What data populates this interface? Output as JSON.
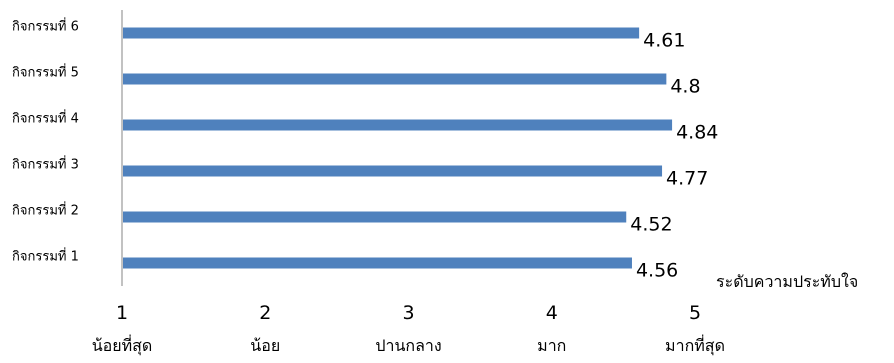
{
  "chart_data": {
    "type": "bar",
    "orientation": "horizontal",
    "categories": [
      "กิจกรรมที่ 1",
      "กิจกรรมที่ 2",
      "กิจกรรมที่ 3",
      "กิจกรรมที่ 4",
      "กิจกรรมที่ 5",
      "กิจกรรมที่ 6"
    ],
    "values": [
      4.56,
      4.52,
      4.77,
      4.84,
      4.8,
      4.61
    ],
    "value_labels": [
      "4.56",
      "4.52",
      "4.77",
      "4.84",
      "4.8",
      "4.61"
    ],
    "xlim": [
      1,
      5
    ],
    "x_ticks": [
      {
        "value": 1,
        "label": "1",
        "text": "น้อยที่สุด"
      },
      {
        "value": 2,
        "label": "2",
        "text": "น้อย"
      },
      {
        "value": 3,
        "label": "3",
        "text": "ปานกลาง"
      },
      {
        "value": 4,
        "label": "4",
        "text": "มาก"
      },
      {
        "value": 5,
        "label": "5",
        "text": "มากที่สุด"
      }
    ],
    "xlabel": "ระดับความประทับใจ",
    "title": "",
    "ylabel": "",
    "grid": false,
    "legend": "none",
    "bar_color": "#4f81bd",
    "axis_color": "#868686"
  }
}
